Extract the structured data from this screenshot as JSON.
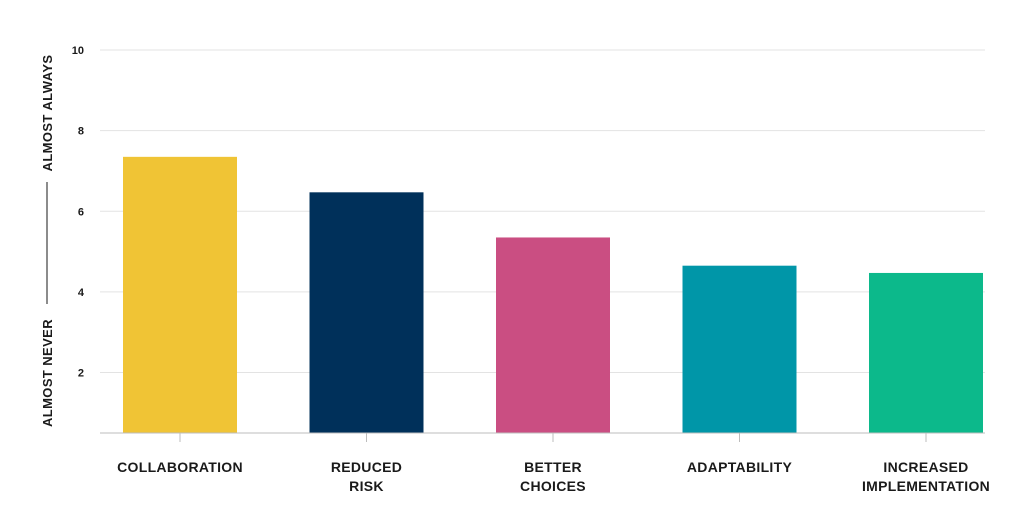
{
  "chart_data": {
    "type": "bar",
    "categories": [
      [
        "COLLABORATION"
      ],
      [
        "REDUCED",
        "RISK"
      ],
      [
        "BETTER",
        "CHOICES"
      ],
      [
        "ADAPTABILITY"
      ],
      [
        "INCREASED",
        "IMPLEMENTATION"
      ]
    ],
    "values": [
      7.35,
      6.47,
      5.35,
      4.65,
      4.47
    ],
    "colors": [
      "#F0C435",
      "#00305A",
      "#CA4E82",
      "#0096A8",
      "#0CB98B"
    ],
    "y_ticks": [
      "2",
      "4",
      "6",
      "8",
      "10"
    ],
    "ylim": [
      0.5,
      10
    ],
    "ylabel_low": "ALMOST NEVER",
    "ylabel_high": "ALMOST ALWAYS",
    "grid": true,
    "title": "",
    "xlabel": ""
  }
}
